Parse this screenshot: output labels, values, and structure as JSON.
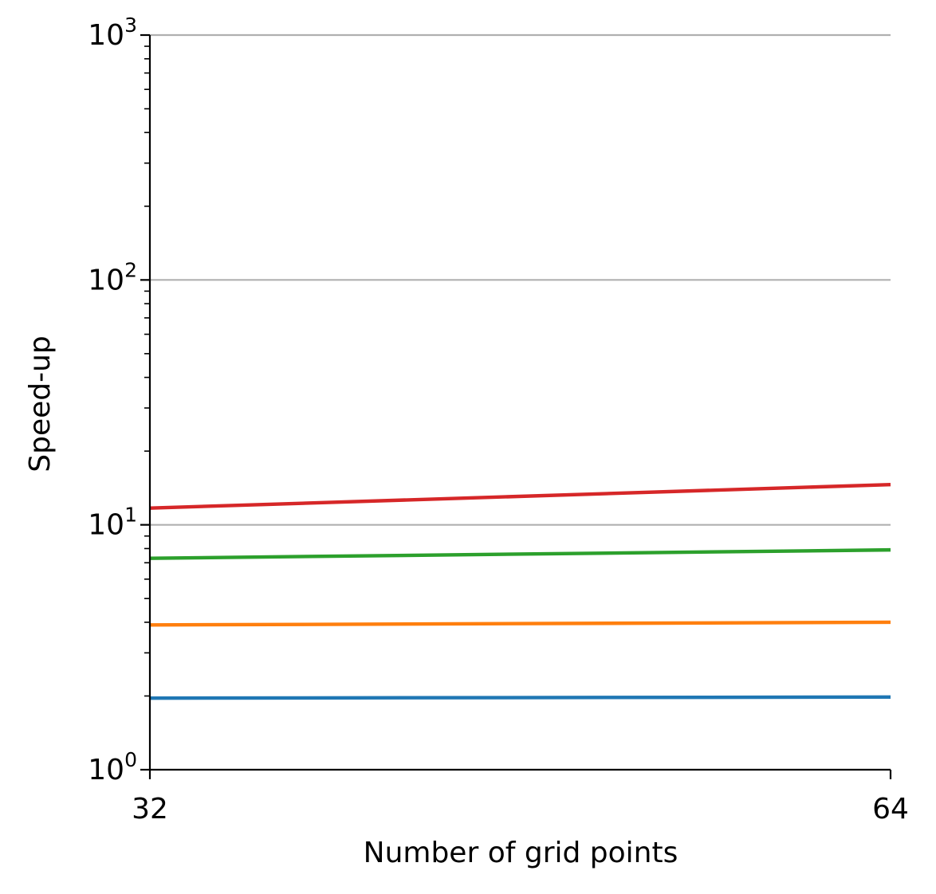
{
  "chart_data": {
    "type": "line",
    "title": "",
    "xlabel": "Number of grid points",
    "ylabel": "Speed-up",
    "x": [
      32,
      64
    ],
    "x_ticks": [
      "32",
      "64"
    ],
    "xlim": [
      32,
      64
    ],
    "y_scale": "log",
    "ylim": [
      1,
      1000
    ],
    "y_ticks": [
      {
        "value": 1,
        "base": "10",
        "exp": "0"
      },
      {
        "value": 10,
        "base": "10",
        "exp": "1"
      },
      {
        "value": 100,
        "base": "10",
        "exp": "2"
      },
      {
        "value": 1000,
        "base": "10",
        "exp": "3"
      }
    ],
    "grid": "horizontal at major y ticks",
    "legend": "none",
    "series": [
      {
        "color": "#1f77b4",
        "values": [
          1.96,
          1.98
        ]
      },
      {
        "color": "#ff7f0e",
        "values": [
          3.9,
          4.0
        ]
      },
      {
        "color": "#2ca02c",
        "values": [
          7.3,
          7.9
        ]
      },
      {
        "color": "#d62728",
        "values": [
          11.7,
          14.6
        ]
      }
    ]
  }
}
